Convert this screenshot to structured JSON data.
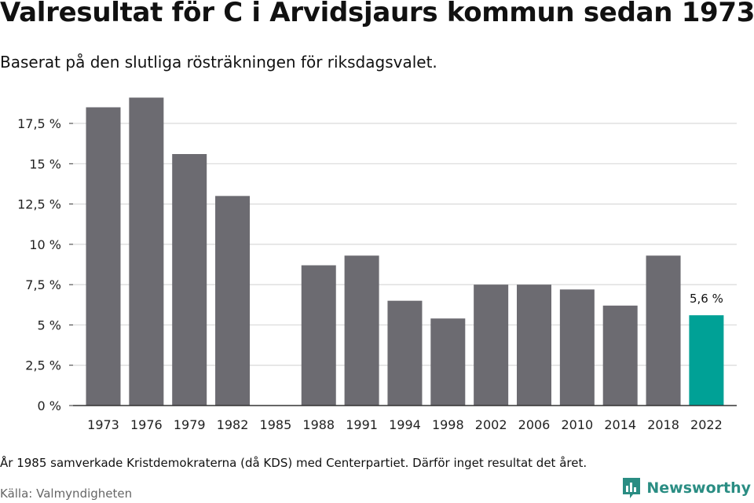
{
  "title": "Valresultat för C i Arvidsjaurs kommun sedan 1973",
  "subtitle": "Baserat på den slutliga rösträkningen för riksdagsvalet.",
  "note": "År 1985 samverkade Kristdemokraterna (då KDS) med Centerpartiet. Därför inget resultat det året.",
  "source": "Källa: Valmyndigheten",
  "brand": {
    "name": "Newsworthy",
    "color": "#2a8d83"
  },
  "chart_data": {
    "type": "bar",
    "categories": [
      "1973",
      "1976",
      "1979",
      "1982",
      "1985",
      "1988",
      "1991",
      "1994",
      "1998",
      "2002",
      "2006",
      "2010",
      "2014",
      "2018",
      "2022"
    ],
    "values": [
      18.5,
      19.1,
      15.6,
      13.0,
      null,
      8.7,
      9.3,
      6.5,
      5.4,
      7.5,
      7.5,
      7.2,
      6.2,
      9.3,
      5.6
    ],
    "ylim": [
      0,
      19.5
    ],
    "yticks": [
      0,
      2.5,
      5,
      7.5,
      10,
      12.5,
      15,
      17.5
    ],
    "ytick_labels": [
      "0 %",
      "2,5 %",
      "5 %",
      "7,5 %",
      "10 %",
      "12,5 %",
      "15 %",
      "17,5 %"
    ],
    "grid": true,
    "colors": {
      "bar": "#6c6b71",
      "highlight": "#00a196",
      "grid": "#d9d9d9",
      "axis": "#333333"
    },
    "highlight_index": 14,
    "data_labels": [
      {
        "index": 14,
        "text": "5,6 %"
      }
    ]
  }
}
